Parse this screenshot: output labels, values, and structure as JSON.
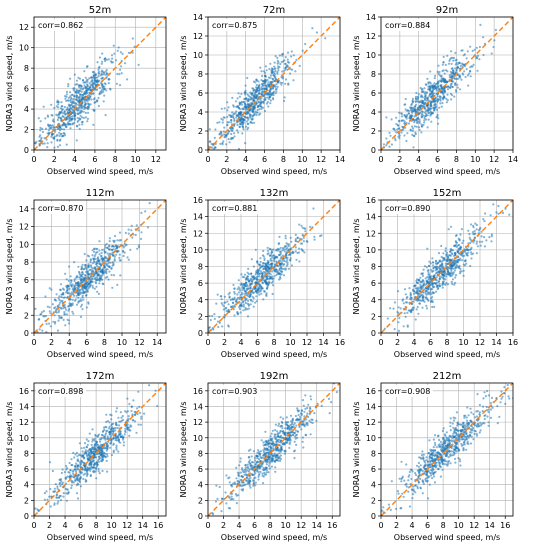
{
  "chart_data": [
    {
      "type": "scatter",
      "title": "52m",
      "corr_label": "corr=0.862",
      "xlabel": "Observed wind speed, m/s",
      "ylabel": "NORA3 wind speed, m/s",
      "xlim": [
        0,
        13
      ],
      "ylim": [
        0,
        13
      ],
      "xticks": [
        0,
        2,
        4,
        6,
        8,
        10,
        12
      ],
      "yticks": [
        0,
        2,
        4,
        6,
        8,
        10,
        12
      ],
      "grid": true,
      "points_color": "#1f77b4",
      "reference_line": {
        "type": "1:1",
        "style": "dashed",
        "color": "#ff7f0e"
      },
      "center": [
        4.6,
        4.8
      ],
      "spread": [
        1.9,
        2.1
      ]
    },
    {
      "type": "scatter",
      "title": "72m",
      "corr_label": "corr=0.875",
      "xlabel": "Observed wind speed, m/s",
      "ylabel": "NORA3 wind speed, m/s",
      "xlim": [
        0,
        14
      ],
      "ylim": [
        0,
        14
      ],
      "xticks": [
        0,
        2,
        4,
        6,
        8,
        10,
        12,
        14
      ],
      "yticks": [
        0,
        2,
        4,
        6,
        8,
        10,
        12,
        14
      ],
      "grid": true,
      "points_color": "#1f77b4",
      "reference_line": {
        "type": "1:1",
        "style": "dashed",
        "color": "#ff7f0e"
      },
      "center": [
        5.0,
        5.2
      ],
      "spread": [
        2.0,
        2.2
      ]
    },
    {
      "type": "scatter",
      "title": "92m",
      "corr_label": "corr=0.884",
      "xlabel": "Observed wind speed, m/s",
      "ylabel": "NORA3 wind speed, m/s",
      "xlim": [
        0,
        14
      ],
      "ylim": [
        0,
        14
      ],
      "xticks": [
        0,
        2,
        4,
        6,
        8,
        10,
        12,
        14
      ],
      "yticks": [
        0,
        2,
        4,
        6,
        8,
        10,
        12,
        14
      ],
      "grid": true,
      "points_color": "#1f77b4",
      "reference_line": {
        "type": "1:1",
        "style": "dashed",
        "color": "#ff7f0e"
      },
      "center": [
        5.5,
        5.7
      ],
      "spread": [
        2.1,
        2.3
      ]
    },
    {
      "type": "scatter",
      "title": "112m",
      "corr_label": "corr=0.870",
      "xlabel": "Observed wind speed, m/s",
      "ylabel": "NORA3 wind speed, m/s",
      "xlim": [
        0,
        15
      ],
      "ylim": [
        0,
        15
      ],
      "xticks": [
        0,
        2,
        4,
        6,
        8,
        10,
        12,
        14
      ],
      "yticks": [
        0,
        2,
        4,
        6,
        8,
        10,
        12,
        14
      ],
      "grid": true,
      "points_color": "#1f77b4",
      "reference_line": {
        "type": "1:1",
        "style": "dashed",
        "color": "#ff7f0e"
      },
      "center": [
        6.3,
        6.3
      ],
      "spread": [
        2.4,
        2.5
      ]
    },
    {
      "type": "scatter",
      "title": "132m",
      "corr_label": "corr=0.881",
      "xlabel": "Observed wind speed, m/s",
      "ylabel": "NORA3 wind speed, m/s",
      "xlim": [
        0,
        16
      ],
      "ylim": [
        0,
        16
      ],
      "xticks": [
        0,
        2,
        4,
        6,
        8,
        10,
        12,
        14,
        16
      ],
      "yticks": [
        0,
        2,
        4,
        6,
        8,
        10,
        12,
        14,
        16
      ],
      "grid": true,
      "points_color": "#1f77b4",
      "reference_line": {
        "type": "1:1",
        "style": "dashed",
        "color": "#ff7f0e"
      },
      "center": [
        6.8,
        6.9
      ],
      "spread": [
        2.5,
        2.6
      ]
    },
    {
      "type": "scatter",
      "title": "152m",
      "corr_label": "corr=0.890",
      "xlabel": "Observed wind speed, m/s",
      "ylabel": "NORA3 wind speed, m/s",
      "xlim": [
        0,
        16
      ],
      "ylim": [
        0,
        16
      ],
      "xticks": [
        0,
        2,
        4,
        6,
        8,
        10,
        12,
        14,
        16
      ],
      "yticks": [
        0,
        2,
        4,
        6,
        8,
        10,
        12,
        14,
        16
      ],
      "grid": true,
      "points_color": "#1f77b4",
      "reference_line": {
        "type": "1:1",
        "style": "dashed",
        "color": "#ff7f0e"
      },
      "center": [
        7.3,
        7.3
      ],
      "spread": [
        2.6,
        2.7
      ]
    },
    {
      "type": "scatter",
      "title": "172m",
      "corr_label": "corr=0.898",
      "xlabel": "Observed wind speed, m/s",
      "ylabel": "NORA3 wind speed, m/s",
      "xlim": [
        0,
        17
      ],
      "ylim": [
        0,
        17
      ],
      "xticks": [
        0,
        2,
        4,
        6,
        8,
        10,
        12,
        14,
        16
      ],
      "yticks": [
        0,
        2,
        4,
        6,
        8,
        10,
        12,
        14,
        16
      ],
      "grid": true,
      "points_color": "#1f77b4",
      "reference_line": {
        "type": "1:1",
        "style": "dashed",
        "color": "#ff7f0e"
      },
      "center": [
        7.8,
        7.9
      ],
      "spread": [
        2.7,
        2.8
      ]
    },
    {
      "type": "scatter",
      "title": "192m",
      "corr_label": "corr=0.903",
      "xlabel": "Observed wind speed, m/s",
      "ylabel": "NORA3 wind speed, m/s",
      "xlim": [
        0,
        17
      ],
      "ylim": [
        0,
        17
      ],
      "xticks": [
        0,
        2,
        4,
        6,
        8,
        10,
        12,
        14,
        16
      ],
      "yticks": [
        0,
        2,
        4,
        6,
        8,
        10,
        12,
        14,
        16
      ],
      "grid": true,
      "points_color": "#1f77b4",
      "reference_line": {
        "type": "1:1",
        "style": "dashed",
        "color": "#ff7f0e"
      },
      "center": [
        8.1,
        8.2
      ],
      "spread": [
        2.8,
        2.9
      ]
    },
    {
      "type": "scatter",
      "title": "212m",
      "corr_label": "corr=0.908",
      "xlabel": "Observed wind speed, m/s",
      "ylabel": "NORA3 wind speed, m/s",
      "xlim": [
        0,
        17
      ],
      "ylim": [
        0,
        17
      ],
      "xticks": [
        0,
        2,
        4,
        6,
        8,
        10,
        12,
        14,
        16
      ],
      "yticks": [
        0,
        2,
        4,
        6,
        8,
        10,
        12,
        14,
        16
      ],
      "grid": true,
      "points_color": "#1f77b4",
      "reference_line": {
        "type": "1:1",
        "style": "dashed",
        "color": "#ff7f0e"
      },
      "center": [
        8.4,
        8.5
      ],
      "spread": [
        2.9,
        3.0
      ]
    }
  ]
}
